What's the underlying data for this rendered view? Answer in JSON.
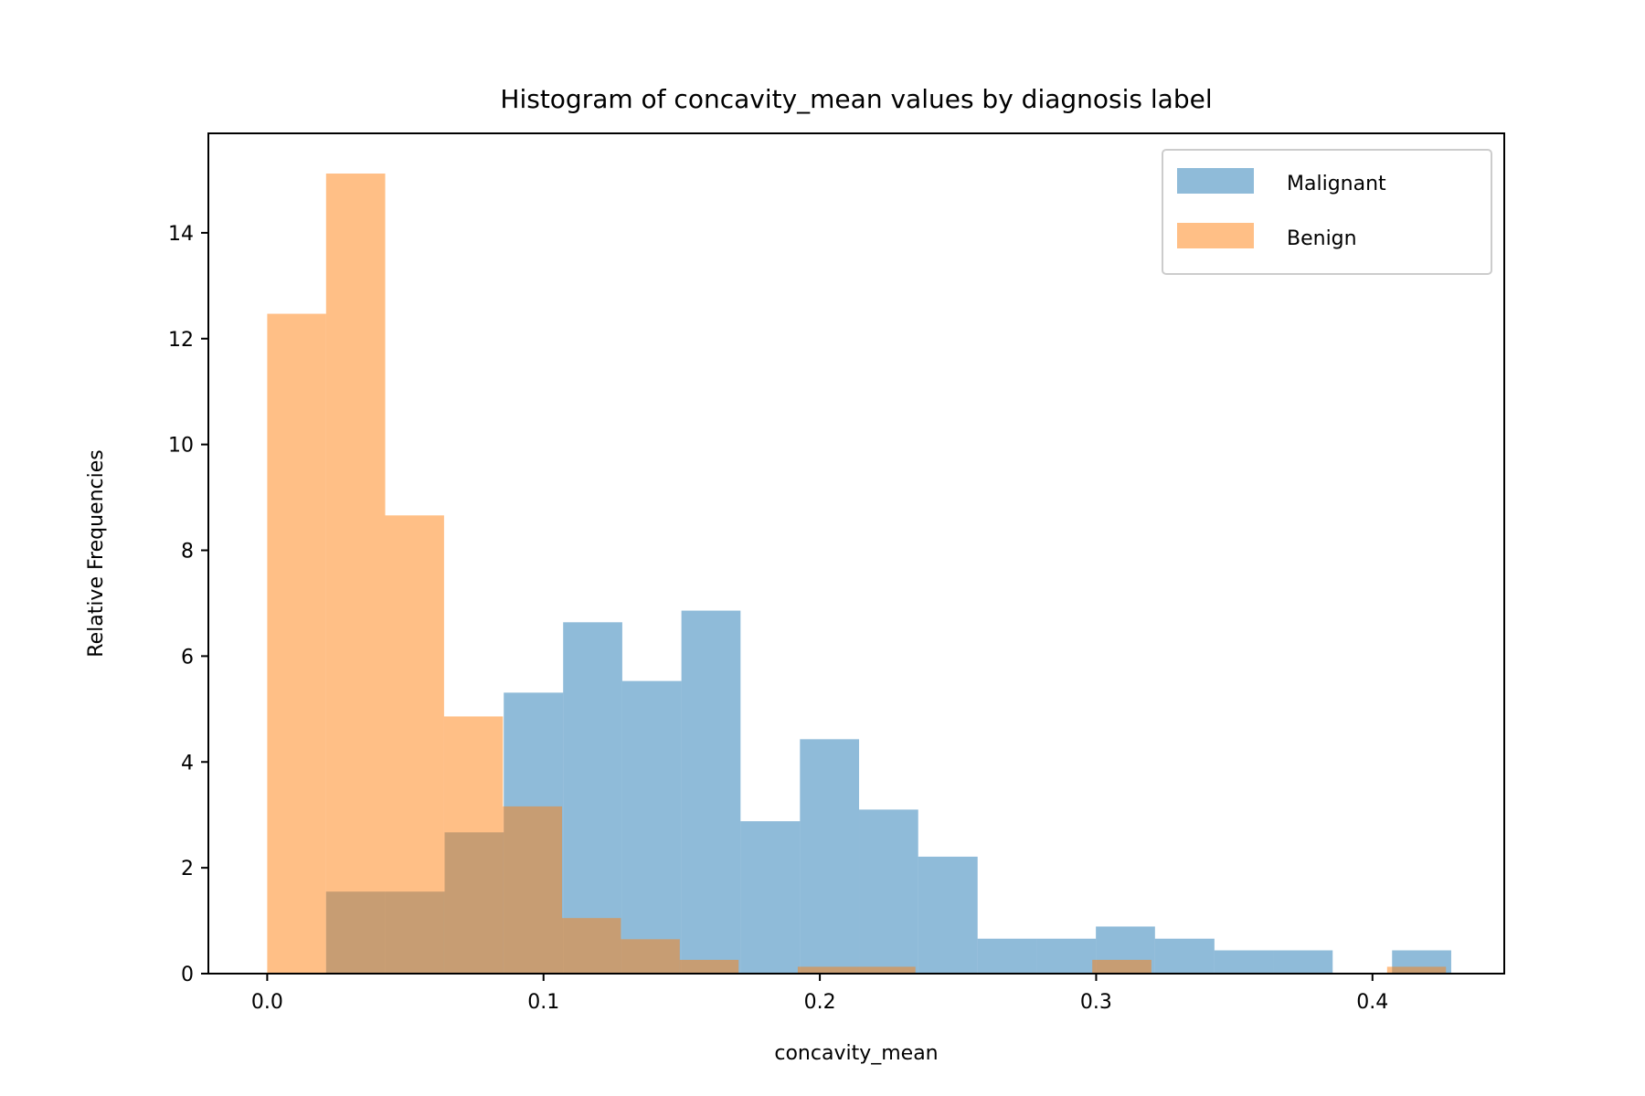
{
  "chart_data": {
    "type": "bar",
    "title": "Histogram of concavity_mean values by diagnosis label",
    "xlabel": "concavity_mean",
    "ylabel": "Relative Frequencies",
    "xlim": [
      -0.0213,
      0.4477
    ],
    "ylim": [
      0,
      15.88
    ],
    "xticks": [
      0.0,
      0.1,
      0.2,
      0.3,
      0.4
    ],
    "xtick_labels": [
      "0.0",
      "0.1",
      "0.2",
      "0.3",
      "0.4"
    ],
    "yticks": [
      0,
      2,
      4,
      6,
      8,
      10,
      12,
      14
    ],
    "ytick_labels": [
      "0",
      "2",
      "4",
      "6",
      "8",
      "10",
      "12",
      "14"
    ],
    "legend_position": "top-right",
    "grid": false,
    "series": [
      {
        "name": "Malignant",
        "color": "#1f77b4",
        "alpha": 0.5,
        "bin_edges": [
          0.0213,
          0.0428,
          0.0642,
          0.0856,
          0.1071,
          0.1285,
          0.1499,
          0.1713,
          0.1928,
          0.2142,
          0.2356,
          0.2571,
          0.2785,
          0.2999,
          0.3213,
          0.3428,
          0.3642,
          0.3856,
          0.4071,
          0.4285
        ],
        "values": [
          1.55,
          1.55,
          2.67,
          5.31,
          6.64,
          5.53,
          6.86,
          2.88,
          4.43,
          3.1,
          2.21,
          0.66,
          0.66,
          0.89,
          0.66,
          0.44,
          0.44,
          0.0,
          0.44
        ]
      },
      {
        "name": "Benign",
        "color": "#ff7f0e",
        "alpha": 0.5,
        "bin_edges": [
          0.0,
          0.0213,
          0.0427,
          0.064,
          0.0853,
          0.1067,
          0.128,
          0.1493,
          0.1706,
          0.192,
          0.2133,
          0.2346,
          0.256,
          0.2773,
          0.2986,
          0.32,
          0.3413,
          0.3626,
          0.384,
          0.4053,
          0.4266
        ],
        "values": [
          12.47,
          15.12,
          8.66,
          4.86,
          3.16,
          1.05,
          0.65,
          0.26,
          0.0,
          0.13,
          0.13,
          0.0,
          0.0,
          0.0,
          0.26,
          0.0,
          0.0,
          0.0,
          0.0,
          0.13
        ]
      }
    ]
  }
}
